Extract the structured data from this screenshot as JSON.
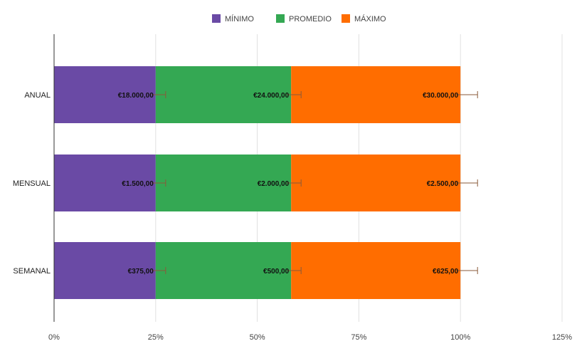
{
  "chart_data": {
    "type": "bar",
    "orientation": "horizontal",
    "stacking": "percent",
    "categories": [
      "ANUAL",
      "MENSUAL",
      "SEMANAL"
    ],
    "series": [
      {
        "name": "MÍNIMO",
        "color": "#6a4aa5",
        "values": [
          18000,
          1500,
          375
        ],
        "labels": [
          "€18.000,00",
          "€1.500,00",
          "€375,00"
        ]
      },
      {
        "name": "PROMEDIO",
        "color": "#34a853",
        "values": [
          24000,
          2000,
          500
        ],
        "labels": [
          "€24.000,00",
          "€2.000,00",
          "€500,00"
        ]
      },
      {
        "name": "MÁXIMO",
        "color": "#ff6d00",
        "values": [
          30000,
          2500,
          625
        ],
        "labels": [
          "€30.000,00",
          "€2.500,00",
          "€625,00"
        ]
      }
    ],
    "x_ticks": [
      "0%",
      "25%",
      "50%",
      "75%",
      "100%",
      "125%"
    ],
    "xlim": [
      0,
      125
    ],
    "error_bars": true,
    "grid": true,
    "legend_position": "top",
    "title": "",
    "xlabel": "",
    "ylabel": ""
  }
}
